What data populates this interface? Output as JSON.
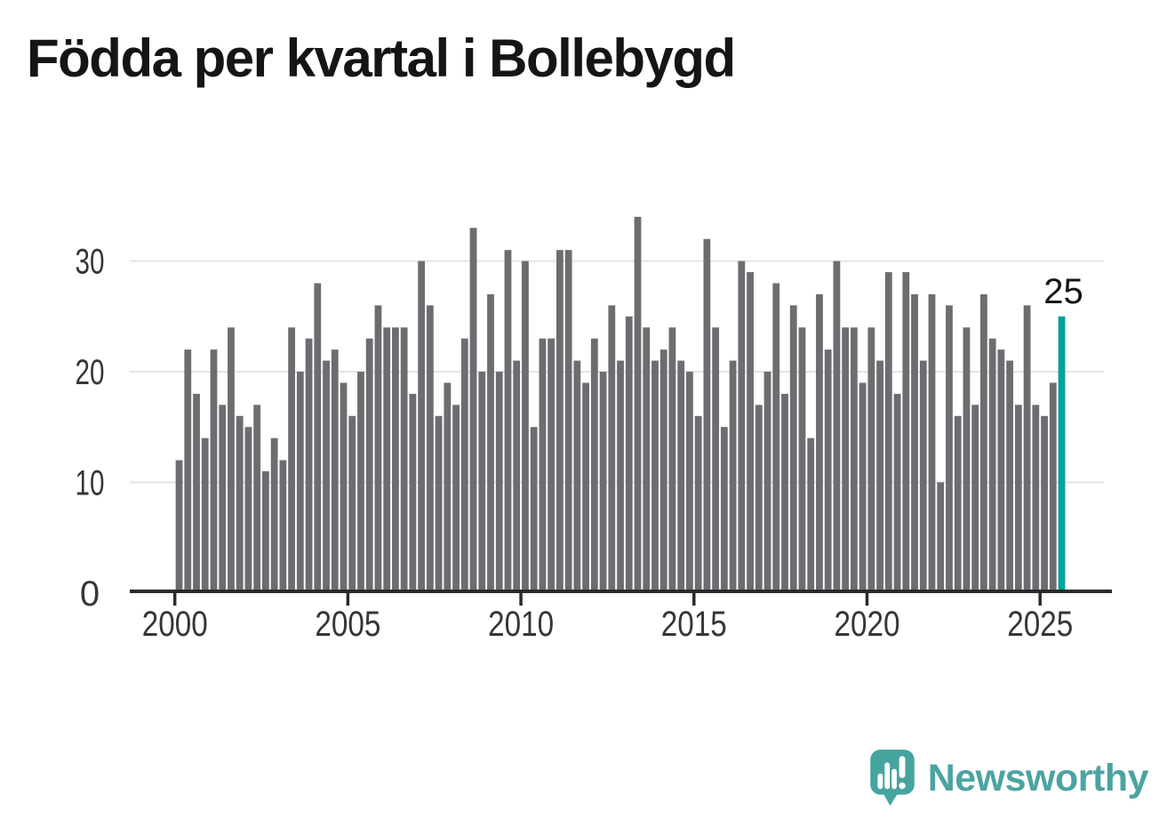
{
  "page": {
    "title": "Födda per kvartal i Bollebygd",
    "background": "#ffffff"
  },
  "chart_data": {
    "type": "bar",
    "title": "Födda per kvartal i Bollebygd",
    "x_unit": "quarter",
    "first_period": "2000 Q1",
    "last_period": "2025 Q3",
    "bar_color": "#6d6d71",
    "gridline_color": "#e4e4e4",
    "axis_color": "#2a2a2a",
    "label_color": "#363636",
    "grid": true,
    "legend": "none",
    "y_axis": {
      "min": 0,
      "max": 36,
      "ticks": [
        {
          "value": 0,
          "label": "0"
        },
        {
          "value": 10,
          "label": "10"
        },
        {
          "value": 20,
          "label": "20"
        },
        {
          "value": 30,
          "label": "30"
        }
      ]
    },
    "x_axis": {
      "ticks": [
        {
          "year": 2000,
          "label": "2000"
        },
        {
          "year": 2005,
          "label": "2005"
        },
        {
          "year": 2010,
          "label": "2010"
        },
        {
          "year": 2015,
          "label": "2015"
        },
        {
          "year": 2020,
          "label": "2020"
        },
        {
          "year": 2025,
          "label": "2025"
        }
      ]
    },
    "values": [
      12,
      22,
      18,
      14,
      22,
      17,
      24,
      16,
      15,
      17,
      11,
      14,
      12,
      24,
      20,
      23,
      28,
      21,
      22,
      19,
      16,
      20,
      23,
      26,
      24,
      24,
      24,
      18,
      30,
      26,
      16,
      19,
      17,
      23,
      33,
      20,
      27,
      20,
      31,
      21,
      30,
      15,
      23,
      23,
      31,
      31,
      21,
      19,
      23,
      20,
      26,
      21,
      25,
      34,
      24,
      21,
      22,
      24,
      21,
      20,
      16,
      32,
      24,
      15,
      21,
      30,
      29,
      17,
      20,
      28,
      18,
      26,
      24,
      14,
      27,
      22,
      30,
      24,
      24,
      19,
      24,
      21,
      29,
      18,
      29,
      27,
      21,
      27,
      10,
      26,
      16,
      24,
      17,
      27,
      23,
      22,
      21,
      17,
      26,
      17,
      16,
      19,
      25
    ],
    "highlight_last": {
      "label": "25",
      "value": 25,
      "color": "#00a29b",
      "period": "2025 Q3"
    }
  },
  "branding": {
    "name": "Newsworthy",
    "text_color": "#4ba3a2",
    "icon_color": "#46a49f",
    "icon": "newsworthy-speech-bubble-chart-icon"
  }
}
